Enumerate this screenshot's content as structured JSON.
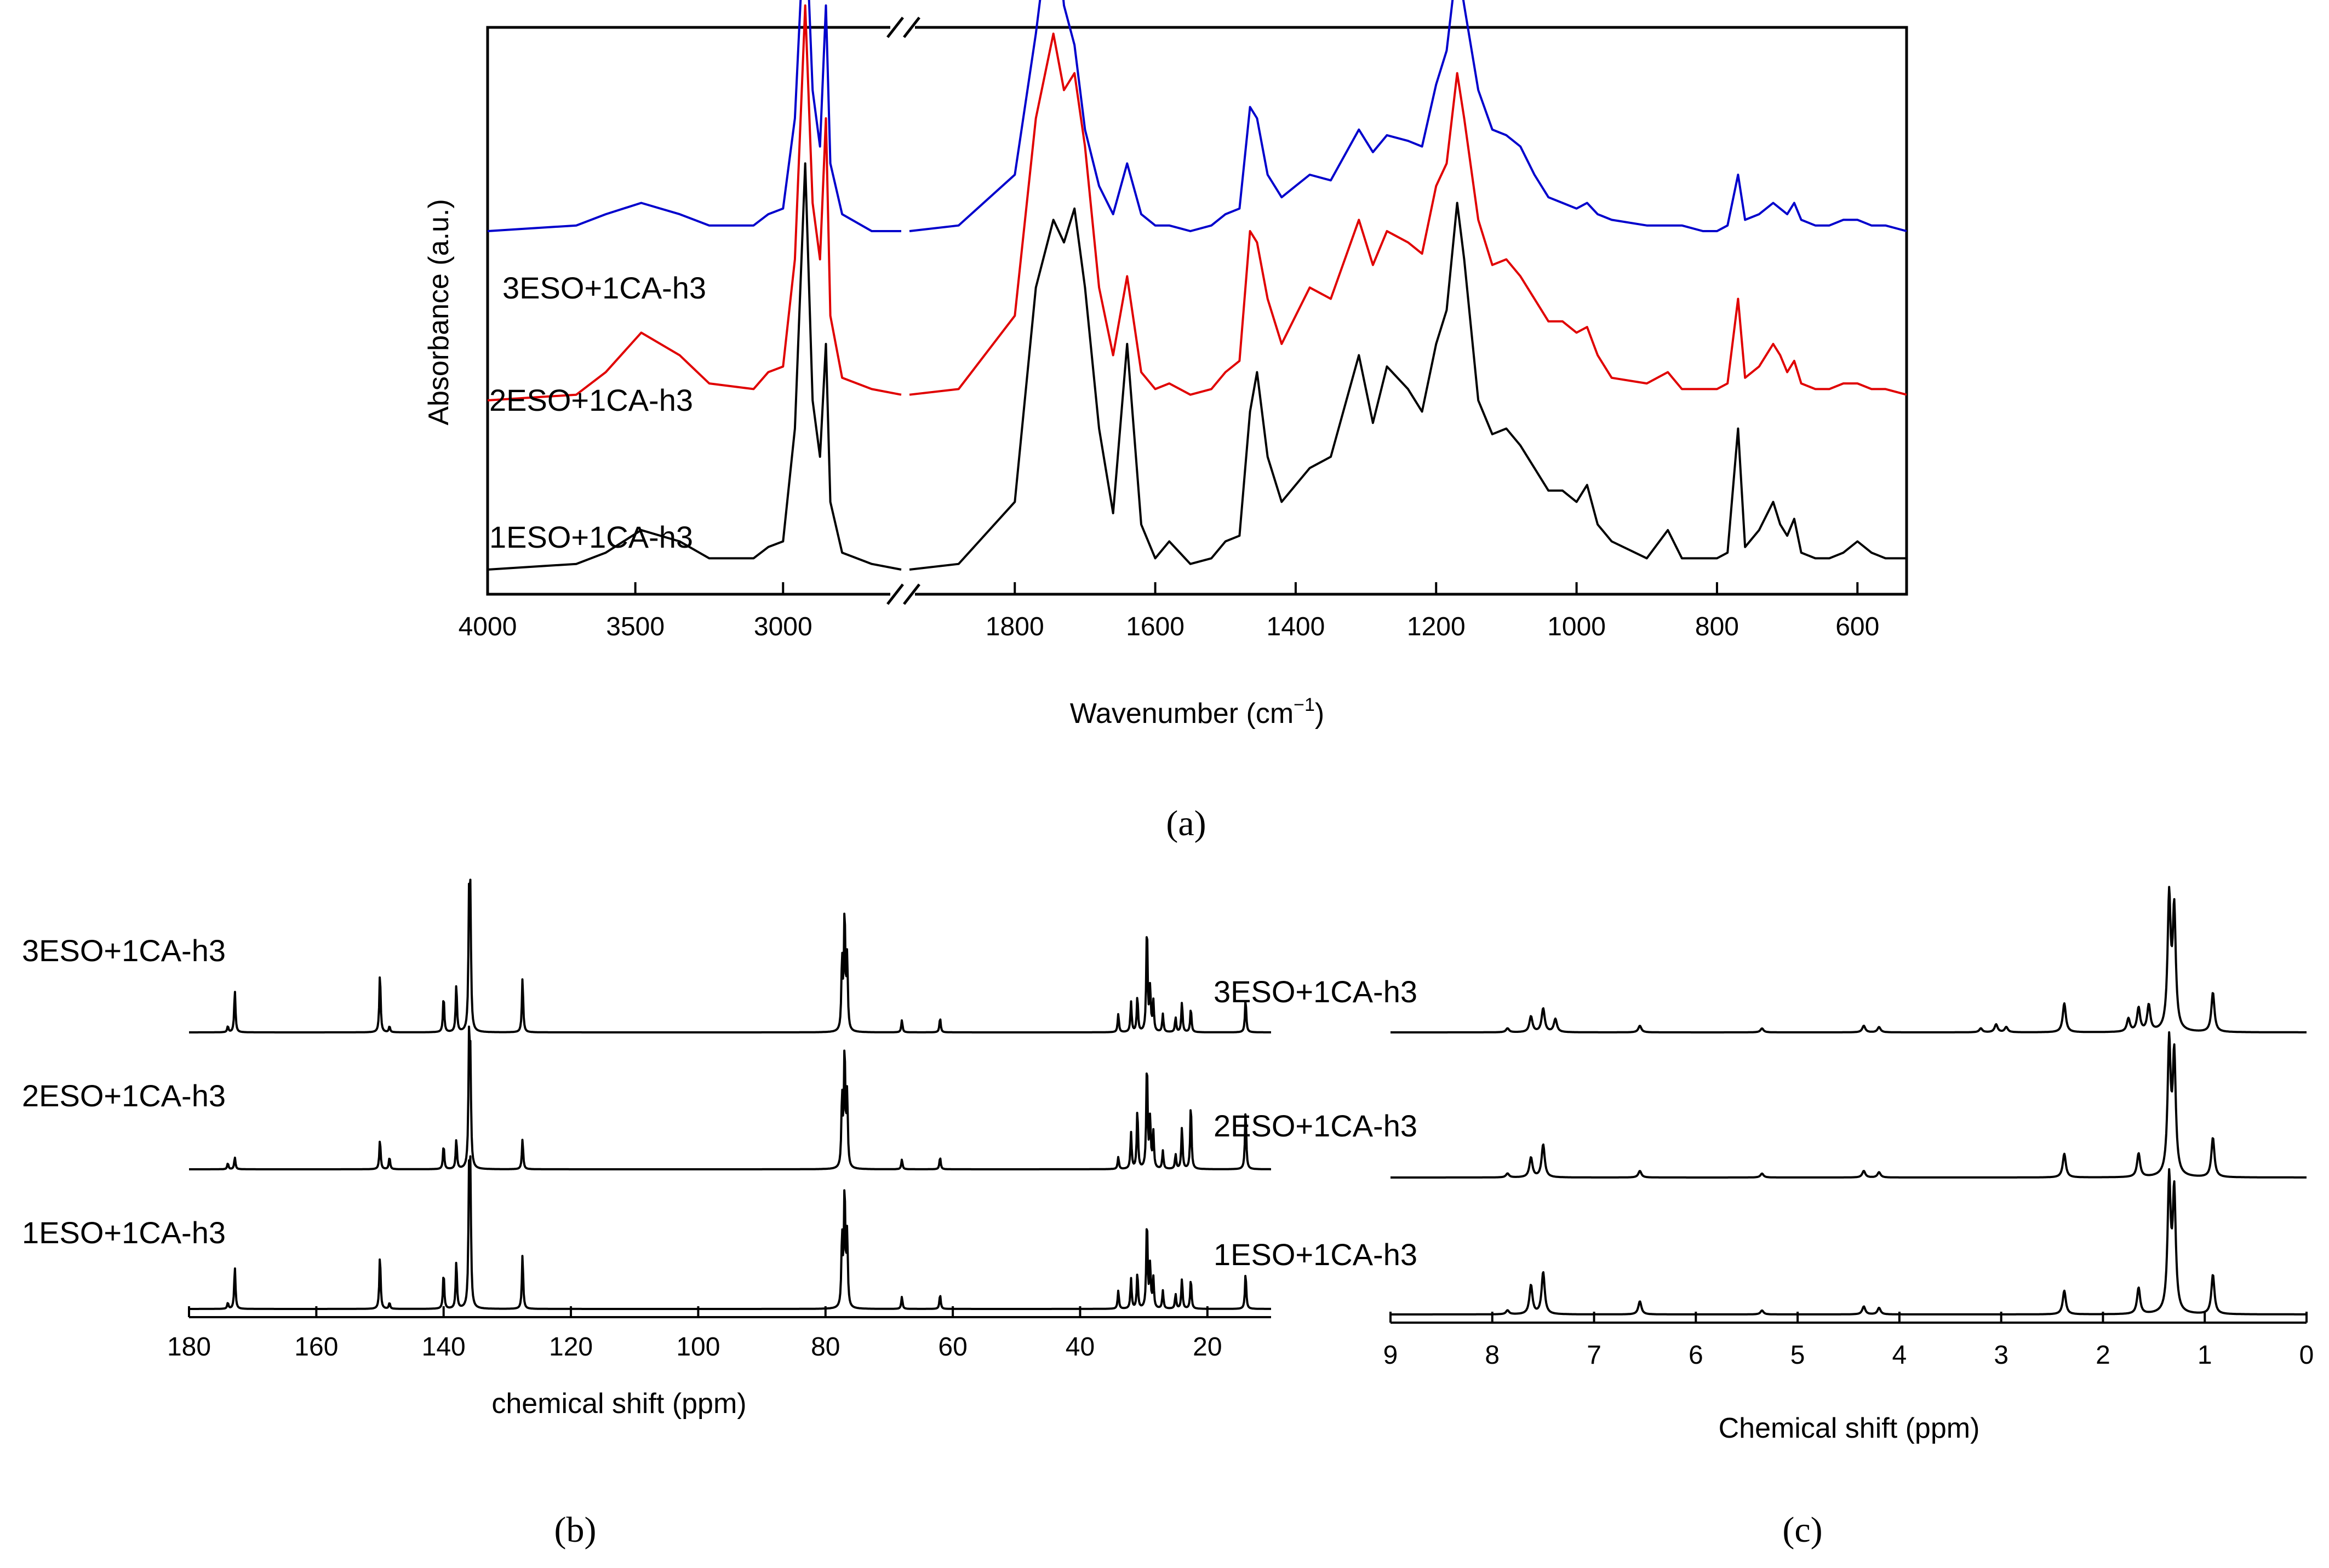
{
  "chart_data": [
    {
      "panel": "(a)",
      "type": "line",
      "xlabel": "Wavenumber (cm⁻¹)",
      "ylabel": "Absorbance (a.u.)",
      "x_axis_break": true,
      "xlim_left_segment": [
        4000,
        2600
      ],
      "xlim_right_segment": [
        1950,
        530
      ],
      "x_ticks": [
        "4000",
        "3500",
        "3000",
        "1800",
        "1600",
        "1400",
        "1200",
        "1000",
        "800",
        "600"
      ],
      "x_tick_values": [
        4000,
        3500,
        3000,
        1800,
        1600,
        1400,
        1200,
        1000,
        800,
        600
      ],
      "series": [
        {
          "name": "3ESO+1CA-h3",
          "color": "#0000cc",
          "offset": 0.6,
          "x": [
            4000,
            3700,
            3600,
            3480,
            3350,
            3250,
            3100,
            3050,
            3000,
            2960,
            2925,
            2900,
            2875,
            2855,
            2840,
            2800,
            2700,
            2600,
            1950,
            1880,
            1800,
            1770,
            1745,
            1730,
            1715,
            1700,
            1680,
            1660,
            1640,
            1620,
            1600,
            1580,
            1550,
            1520,
            1500,
            1480,
            1465,
            1455,
            1440,
            1420,
            1400,
            1380,
            1350,
            1310,
            1290,
            1270,
            1240,
            1220,
            1200,
            1185,
            1170,
            1160,
            1140,
            1120,
            1100,
            1080,
            1060,
            1040,
            1020,
            1000,
            985,
            970,
            950,
            900,
            870,
            850,
            820,
            800,
            785,
            770,
            760,
            740,
            720,
            710,
            700,
            690,
            680,
            660,
            640,
            620,
            600,
            580,
            560,
            530
          ],
          "values": [
            0.0,
            0.01,
            0.03,
            0.05,
            0.03,
            0.01,
            0.01,
            0.03,
            0.04,
            0.2,
            0.58,
            0.25,
            0.15,
            0.4,
            0.12,
            0.03,
            0.0,
            0.0,
            0.0,
            0.01,
            0.1,
            0.35,
            0.6,
            0.4,
            0.33,
            0.18,
            0.08,
            0.03,
            0.12,
            0.03,
            0.01,
            0.01,
            0.0,
            0.01,
            0.03,
            0.04,
            0.22,
            0.2,
            0.1,
            0.06,
            0.08,
            0.1,
            0.09,
            0.18,
            0.14,
            0.17,
            0.16,
            0.15,
            0.26,
            0.32,
            0.48,
            0.4,
            0.25,
            0.18,
            0.17,
            0.15,
            0.1,
            0.06,
            0.05,
            0.04,
            0.05,
            0.03,
            0.02,
            0.01,
            0.01,
            0.01,
            0.0,
            0.0,
            0.01,
            0.1,
            0.02,
            0.03,
            0.05,
            0.04,
            0.03,
            0.05,
            0.02,
            0.01,
            0.01,
            0.02,
            0.02,
            0.01,
            0.01,
            0.0
          ]
        },
        {
          "name": "2ESO+1CA-h3",
          "color": "#e00000",
          "offset": 0.3,
          "x": [
            4000,
            3700,
            3600,
            3480,
            3350,
            3250,
            3100,
            3050,
            3000,
            2960,
            2925,
            2900,
            2875,
            2855,
            2840,
            2800,
            2700,
            2600,
            1950,
            1880,
            1800,
            1770,
            1745,
            1730,
            1715,
            1700,
            1680,
            1660,
            1640,
            1620,
            1600,
            1580,
            1550,
            1520,
            1500,
            1480,
            1465,
            1455,
            1440,
            1420,
            1400,
            1380,
            1350,
            1310,
            1290,
            1270,
            1240,
            1220,
            1200,
            1185,
            1170,
            1160,
            1140,
            1120,
            1100,
            1080,
            1060,
            1040,
            1020,
            1000,
            985,
            970,
            950,
            900,
            870,
            850,
            820,
            800,
            785,
            770,
            760,
            740,
            720,
            710,
            700,
            690,
            680,
            660,
            640,
            620,
            600,
            580,
            560,
            530
          ],
          "values": [
            0.0,
            0.01,
            0.05,
            0.12,
            0.08,
            0.03,
            0.02,
            0.05,
            0.06,
            0.25,
            0.7,
            0.35,
            0.25,
            0.5,
            0.15,
            0.04,
            0.02,
            0.01,
            0.01,
            0.02,
            0.15,
            0.5,
            0.65,
            0.55,
            0.58,
            0.45,
            0.2,
            0.08,
            0.22,
            0.05,
            0.02,
            0.03,
            0.01,
            0.02,
            0.05,
            0.07,
            0.3,
            0.28,
            0.18,
            0.1,
            0.15,
            0.2,
            0.18,
            0.32,
            0.24,
            0.3,
            0.28,
            0.26,
            0.38,
            0.42,
            0.58,
            0.5,
            0.32,
            0.24,
            0.25,
            0.22,
            0.18,
            0.14,
            0.14,
            0.12,
            0.13,
            0.08,
            0.04,
            0.03,
            0.05,
            0.02,
            0.02,
            0.02,
            0.03,
            0.18,
            0.04,
            0.06,
            0.1,
            0.08,
            0.05,
            0.07,
            0.03,
            0.02,
            0.02,
            0.03,
            0.03,
            0.02,
            0.02,
            0.01
          ]
        },
        {
          "name": "1ESO+1CA-h3",
          "color": "#000000",
          "offset": 0.0,
          "x": [
            4000,
            3700,
            3600,
            3480,
            3350,
            3250,
            3100,
            3050,
            3000,
            2960,
            2925,
            2900,
            2875,
            2855,
            2840,
            2800,
            2700,
            2600,
            1950,
            1880,
            1800,
            1770,
            1745,
            1730,
            1715,
            1700,
            1680,
            1660,
            1640,
            1620,
            1600,
            1580,
            1550,
            1520,
            1500,
            1480,
            1465,
            1455,
            1440,
            1420,
            1400,
            1380,
            1350,
            1310,
            1290,
            1270,
            1240,
            1220,
            1200,
            1185,
            1170,
            1160,
            1140,
            1120,
            1100,
            1080,
            1060,
            1040,
            1020,
            1000,
            985,
            970,
            950,
            900,
            870,
            850,
            820,
            800,
            785,
            770,
            760,
            740,
            720,
            710,
            700,
            690,
            680,
            660,
            640,
            620,
            600,
            580,
            560,
            530
          ],
          "values": [
            0.0,
            0.01,
            0.03,
            0.07,
            0.05,
            0.02,
            0.02,
            0.04,
            0.05,
            0.25,
            0.72,
            0.3,
            0.2,
            0.4,
            0.12,
            0.03,
            0.01,
            0.0,
            0.0,
            0.01,
            0.12,
            0.5,
            0.62,
            0.58,
            0.64,
            0.5,
            0.25,
            0.1,
            0.4,
            0.08,
            0.02,
            0.05,
            0.01,
            0.02,
            0.05,
            0.06,
            0.28,
            0.35,
            0.2,
            0.12,
            0.15,
            0.18,
            0.2,
            0.38,
            0.26,
            0.36,
            0.32,
            0.28,
            0.4,
            0.46,
            0.65,
            0.55,
            0.3,
            0.24,
            0.25,
            0.22,
            0.18,
            0.14,
            0.14,
            0.12,
            0.15,
            0.08,
            0.05,
            0.02,
            0.07,
            0.02,
            0.02,
            0.02,
            0.03,
            0.25,
            0.04,
            0.07,
            0.12,
            0.08,
            0.06,
            0.09,
            0.03,
            0.02,
            0.02,
            0.03,
            0.05,
            0.03,
            0.02,
            0.02
          ]
        }
      ]
    },
    {
      "panel": "(b)",
      "type": "line",
      "xlabel": "chemical shift (ppm)",
      "xlim": [
        180,
        10
      ],
      "x_ticks": [
        "180",
        "160",
        "140",
        "120",
        "100",
        "80",
        "60",
        "40",
        "20"
      ],
      "x_tick_values": [
        180,
        160,
        140,
        120,
        100,
        80,
        60,
        40,
        20
      ],
      "series_order_top_to_bottom": [
        "3ESO+1CA-h3",
        "2ESO+1CA-h3",
        "1ESO+1CA-h3"
      ],
      "series": [
        {
          "name": "3ESO+1CA-h3",
          "peaks_ppm": [
            173.9,
            172.8,
            150.0,
            148.5,
            140.0,
            138.0,
            136.0,
            135.8,
            127.6,
            77.4,
            77.0,
            76.6,
            68.0,
            62.0,
            34.0,
            32.0,
            31.0,
            29.5,
            29.0,
            28.5,
            27.0,
            25.0,
            24.0,
            22.6,
            14.0
          ],
          "heights": [
            0.05,
            0.35,
            0.5,
            0.05,
            0.3,
            0.4,
            1.0,
            1.0,
            0.45,
            0.6,
            1.0,
            0.6,
            0.1,
            0.12,
            0.15,
            0.25,
            0.3,
            0.9,
            0.35,
            0.25,
            0.15,
            0.12,
            0.25,
            0.2,
            0.28
          ]
        },
        {
          "name": "2ESO+1CA-h3",
          "peaks_ppm": [
            173.9,
            172.8,
            150.0,
            148.5,
            140.0,
            138.0,
            136.0,
            135.8,
            127.6,
            77.4,
            77.0,
            76.6,
            68.0,
            62.0,
            34.0,
            32.0,
            31.0,
            29.5,
            29.0,
            28.5,
            27.0,
            25.0,
            24.0,
            22.6,
            14.0
          ],
          "heights": [
            0.05,
            0.1,
            0.25,
            0.1,
            0.2,
            0.25,
            1.0,
            0.8,
            0.25,
            0.6,
            1.0,
            0.6,
            0.08,
            0.1,
            0.1,
            0.3,
            0.5,
            0.9,
            0.4,
            0.3,
            0.15,
            0.12,
            0.35,
            0.55,
            0.5
          ]
        },
        {
          "name": "1ESO+1CA-h3",
          "peaks_ppm": [
            173.9,
            172.8,
            150.0,
            148.5,
            140.0,
            138.0,
            136.0,
            135.8,
            127.6,
            77.4,
            77.0,
            76.6,
            68.0,
            62.0,
            34.0,
            32.0,
            31.0,
            29.5,
            29.0,
            28.5,
            27.0,
            25.0,
            24.0,
            22.6,
            14.0
          ],
          "heights": [
            0.05,
            0.35,
            0.45,
            0.05,
            0.3,
            0.4,
            1.0,
            1.0,
            0.45,
            0.6,
            1.0,
            0.6,
            0.1,
            0.12,
            0.15,
            0.25,
            0.3,
            0.75,
            0.35,
            0.25,
            0.15,
            0.12,
            0.25,
            0.25,
            0.3
          ]
        }
      ]
    },
    {
      "panel": "(c)",
      "type": "line",
      "xlabel": "Chemical shift (ppm)",
      "xlim": [
        9,
        0
      ],
      "x_ticks": [
        "9",
        "8",
        "7",
        "6",
        "5",
        "4",
        "3",
        "2",
        "1",
        "0"
      ],
      "x_tick_values": [
        9,
        8,
        7,
        6,
        5,
        4,
        3,
        2,
        1,
        0
      ],
      "series_order_top_to_bottom": [
        "3ESO+1CA-h3",
        "2ESO+1CA-h3",
        "1ESO+1CA-h3"
      ],
      "series": [
        {
          "name": "3ESO+1CA-h3",
          "peaks_ppm": [
            7.85,
            7.62,
            7.5,
            7.38,
            6.55,
            5.35,
            4.35,
            4.2,
            3.2,
            3.05,
            2.95,
            2.38,
            1.75,
            1.65,
            1.55,
            1.35,
            1.3,
            0.92
          ],
          "heights": [
            0.03,
            0.12,
            0.18,
            0.1,
            0.05,
            0.03,
            0.05,
            0.04,
            0.03,
            0.06,
            0.04,
            0.22,
            0.1,
            0.18,
            0.2,
            1.0,
            0.9,
            0.3
          ]
        },
        {
          "name": "2ESO+1CA-h3",
          "peaks_ppm": [
            7.85,
            7.62,
            7.5,
            6.55,
            5.35,
            4.35,
            4.2,
            2.38,
            1.65,
            1.35,
            1.3,
            0.92
          ],
          "heights": [
            0.03,
            0.15,
            0.25,
            0.05,
            0.03,
            0.05,
            0.04,
            0.18,
            0.18,
            1.0,
            0.9,
            0.3
          ]
        },
        {
          "name": "1ESO+1CA-h3",
          "peaks_ppm": [
            7.85,
            7.62,
            7.5,
            6.55,
            5.35,
            4.35,
            4.2,
            2.38,
            1.65,
            1.35,
            1.3,
            0.92
          ],
          "heights": [
            0.03,
            0.22,
            0.32,
            0.1,
            0.03,
            0.06,
            0.05,
            0.18,
            0.2,
            1.0,
            0.9,
            0.3
          ]
        }
      ]
    }
  ],
  "labels": {
    "panel_a": "(a)",
    "panel_b": "(b)",
    "panel_c": "(c)",
    "a_ylabel": "Absorbance (a.u.)",
    "a_xlabel_main": "Wavenumber (cm",
    "a_xlabel_sup": "−1",
    "a_xlabel_end": ")",
    "b_xlabel": "chemical shift (ppm)",
    "c_xlabel": "Chemical shift (ppm)",
    "a_series": [
      "3ESO+1CA-h3",
      "2ESO+1CA-h3",
      "1ESO+1CA-h3"
    ],
    "b_series": [
      "3ESO+1CA-h3",
      "2ESO+1CA-h3",
      "1ESO+1CA-h3"
    ],
    "c_series": [
      "3ESO+1CA-h3",
      "2ESO+1CA-h3",
      "1ESO+1CA-h3"
    ]
  }
}
